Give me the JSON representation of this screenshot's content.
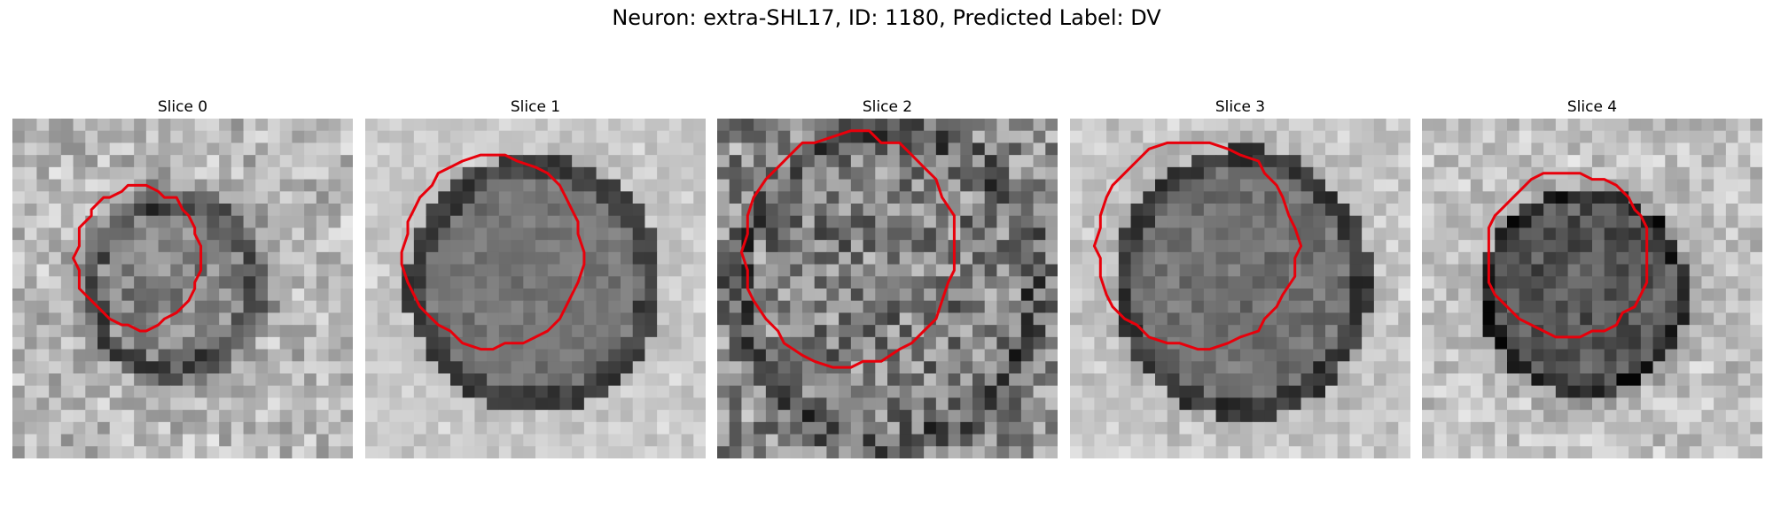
{
  "figure": {
    "title": "Neuron: extra-SHL17, ID: 1180, Predicted Label: DV"
  },
  "panels": [
    {
      "title": "Slice 0",
      "contour_color": "#e8000b"
    },
    {
      "title": "Slice 1",
      "contour_color": "#e8000b"
    },
    {
      "title": "Slice 2",
      "contour_color": "#e8000b"
    },
    {
      "title": "Slice 3",
      "contour_color": "#e8000b"
    },
    {
      "title": "Slice 4",
      "contour_color": "#e8000b"
    }
  ]
}
